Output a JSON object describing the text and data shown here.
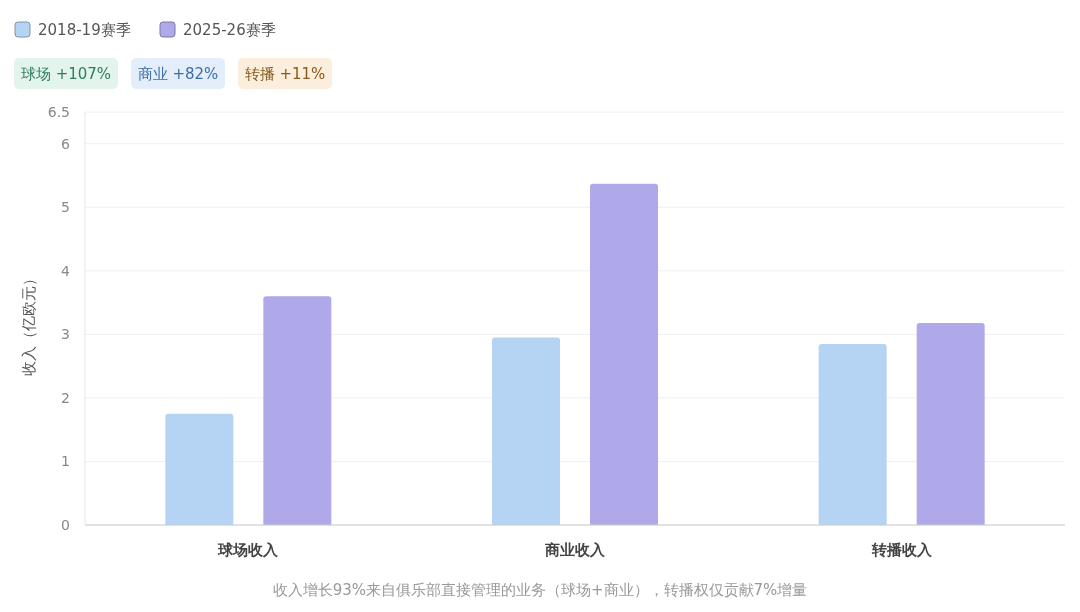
{
  "chart_data": {
    "type": "bar",
    "ylabel": "收入（亿欧元）",
    "categories": [
      "球场收入",
      "商业收入",
      "转播收入"
    ],
    "series": [
      {
        "name": "2018-19赛季",
        "color": "#b5d4f3",
        "values": [
          1.75,
          2.95,
          2.85
        ]
      },
      {
        "name": "2025-26赛季",
        "color": "#afa8e9",
        "values": [
          3.6,
          5.37,
          3.18
        ]
      }
    ],
    "ylim": [
      0,
      6.5
    ],
    "yticks": [
      0,
      1,
      2,
      3,
      4,
      5,
      6,
      6.5
    ],
    "grid": "y",
    "legend": "top left",
    "annotations": [
      "球场 +107%",
      "商业 +82%",
      "转播 +11%",
      "收入增长93%来自俱乐部直接管理的业务（球场+商业），转播权仅贡献7%增量"
    ]
  }
}
